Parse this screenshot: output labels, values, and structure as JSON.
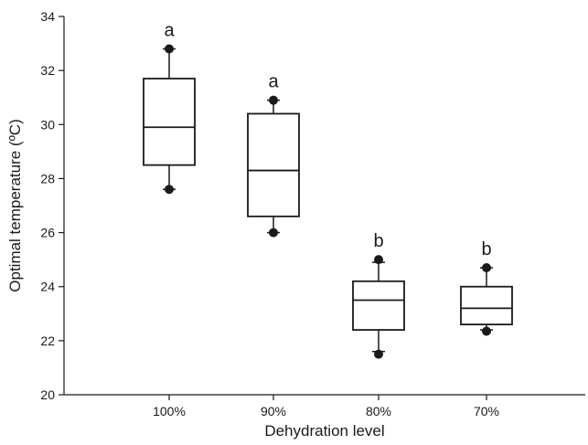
{
  "chart_data": {
    "type": "box",
    "xlabel": "Dehydration level",
    "ylabel": "Optimal temperature (ºC)",
    "ylim": [
      20,
      34
    ],
    "yticks": [
      "20",
      "22",
      "24",
      "26",
      "28",
      "30",
      "32",
      "34"
    ],
    "categories": [
      "100%",
      "90%",
      "80%",
      "70%"
    ],
    "boxes": [
      {
        "category": "100%",
        "q1": 28.5,
        "median": 29.9,
        "q3": 31.7,
        "whisker_low": 27.6,
        "whisker_high": 32.8,
        "outliers": [
          27.6,
          32.8
        ],
        "letter": "a"
      },
      {
        "category": "90%",
        "q1": 26.6,
        "median": 28.3,
        "q3": 30.4,
        "whisker_low": 26.0,
        "whisker_high": 30.9,
        "outliers": [
          26.0,
          30.9
        ],
        "letter": "a"
      },
      {
        "category": "80%",
        "q1": 22.4,
        "median": 23.5,
        "q3": 24.2,
        "whisker_low": 21.6,
        "whisker_high": 24.9,
        "outliers": [
          21.5,
          25.0
        ],
        "letter": "b"
      },
      {
        "category": "70%",
        "q1": 22.6,
        "median": 23.2,
        "q3": 24.0,
        "whisker_low": 22.4,
        "whisker_high": 24.7,
        "outliers": [
          22.35,
          24.7
        ],
        "letter": "b"
      }
    ],
    "grid": false,
    "legend": "none"
  }
}
